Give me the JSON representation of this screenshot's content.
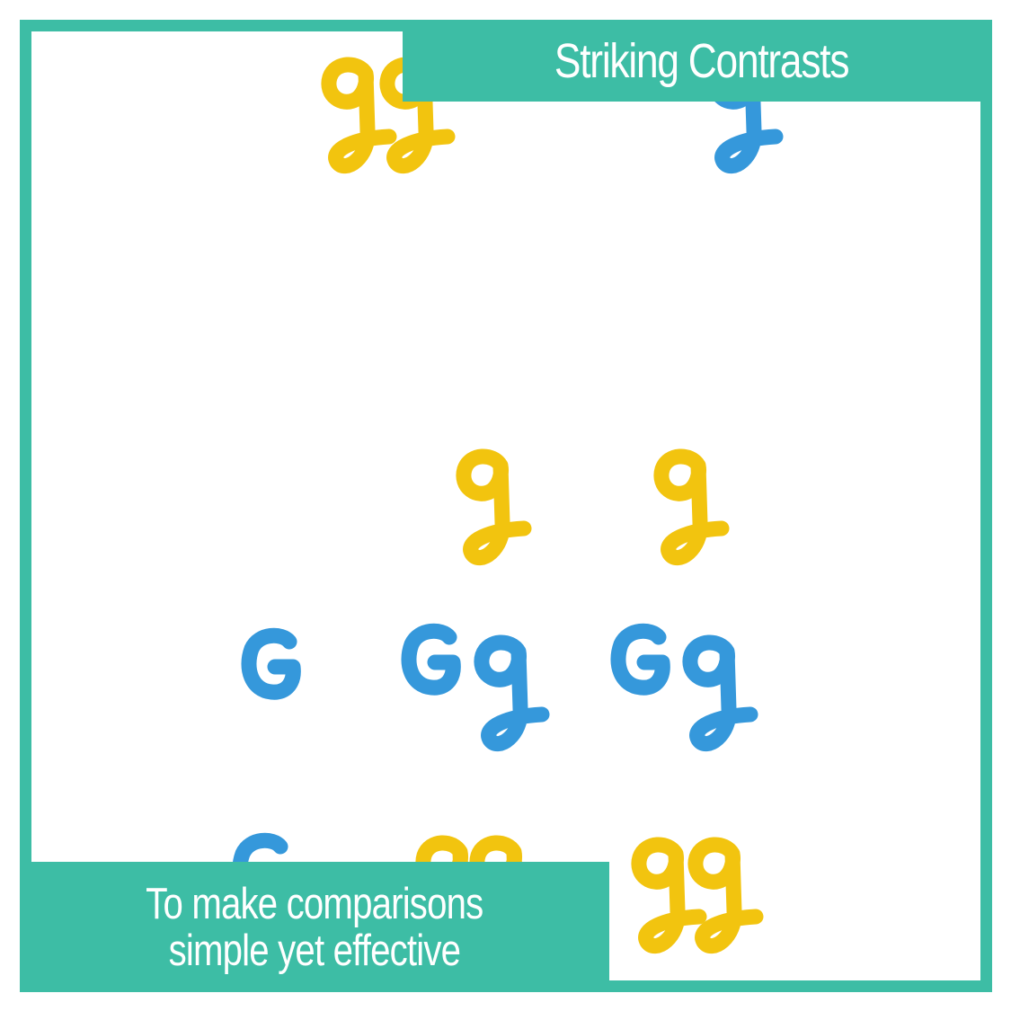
{
  "header": {
    "title": "Striking Contrasts"
  },
  "footer": {
    "line1": "To make comparisons",
    "line2": "simple yet effective"
  },
  "colors": {
    "accent": "#3dbda5",
    "yellow": "#f2c40f",
    "blue": "#3598db",
    "background": "#ffffff"
  }
}
